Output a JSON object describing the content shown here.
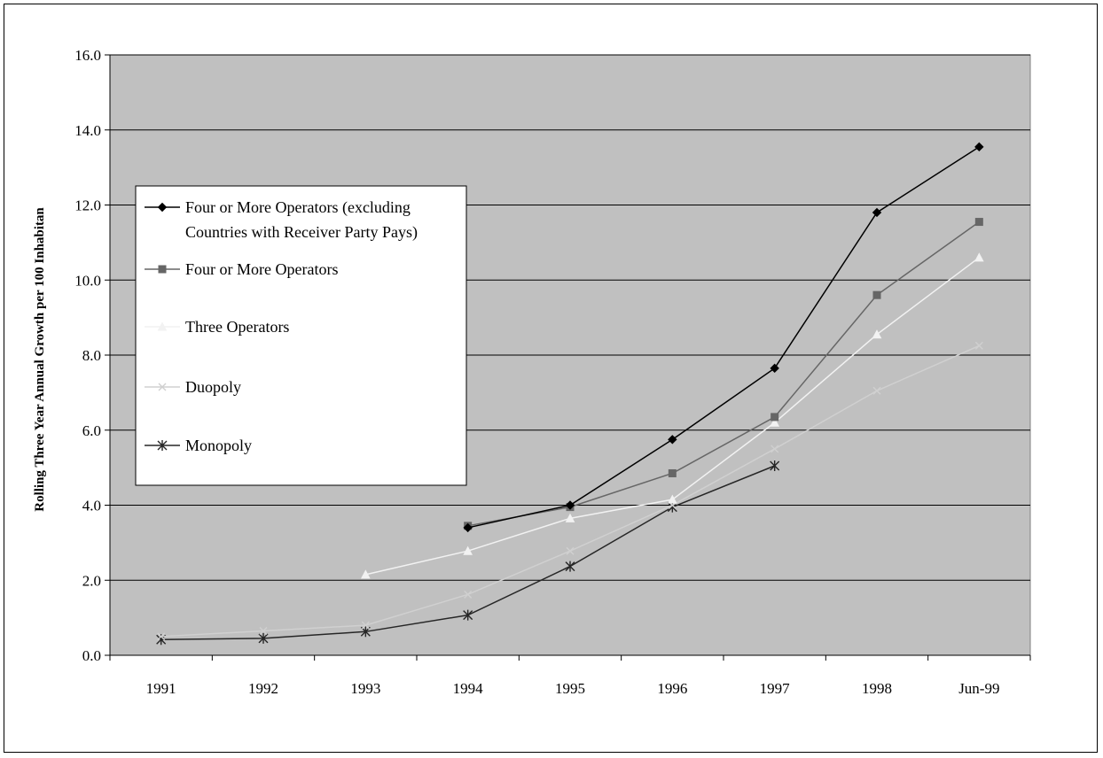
{
  "chart_data": {
    "type": "line",
    "title": "",
    "xlabel": "",
    "ylabel": "Rolling Three Year Annual Growth per 100 Inhabitan",
    "categories": [
      "1991",
      "1992",
      "1993",
      "1994",
      "1995",
      "1996",
      "1997",
      "1998",
      "Jun-99"
    ],
    "ylim": [
      0,
      16
    ],
    "yticks": [
      "0.0",
      "2.0",
      "4.0",
      "6.0",
      "8.0",
      "10.0",
      "12.0",
      "14.0",
      "16.0"
    ],
    "grid": true,
    "plot_background": "#c0c0c0",
    "legend_position": "left",
    "series": [
      {
        "name": "Four or More Operators (excluding Countries with Receiver Party Pays)",
        "legend_lines": [
          "Four or More Operators (excluding",
          "Countries with Receiver Party Pays)"
        ],
        "color": "#000000",
        "marker": "diamond",
        "values": [
          null,
          null,
          null,
          3.4,
          4.0,
          5.75,
          7.65,
          11.8,
          13.55
        ]
      },
      {
        "name": "Four or More Operators",
        "legend_lines": [
          "Four or More Operators"
        ],
        "color": "#666666",
        "marker": "square",
        "values": [
          null,
          null,
          null,
          3.45,
          3.95,
          4.85,
          6.35,
          9.6,
          11.55
        ]
      },
      {
        "name": "Three Operators",
        "legend_lines": [
          "Three Operators"
        ],
        "color": "#f2f2f2",
        "marker": "triangle",
        "values": [
          null,
          null,
          2.15,
          2.78,
          3.65,
          4.15,
          6.2,
          8.55,
          10.6
        ]
      },
      {
        "name": "Duopoly",
        "legend_lines": [
          "Duopoly"
        ],
        "color": "#d0d0d0",
        "marker": "x",
        "values": [
          0.5,
          0.65,
          0.8,
          1.62,
          2.78,
          4.0,
          5.5,
          7.05,
          8.25
        ]
      },
      {
        "name": "Monopoly",
        "legend_lines": [
          "Monopoly"
        ],
        "color": "#262626",
        "marker": "star",
        "values": [
          0.42,
          0.45,
          0.63,
          1.07,
          2.37,
          3.95,
          5.05,
          null,
          null
        ]
      }
    ]
  }
}
